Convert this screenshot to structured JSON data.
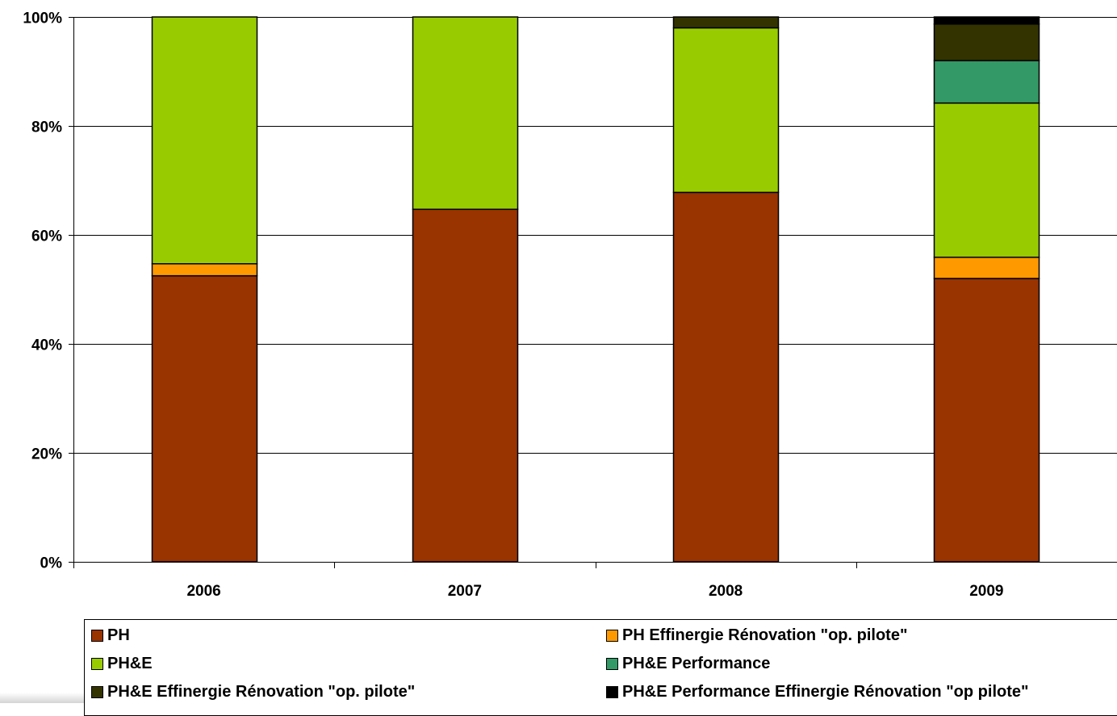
{
  "chart_data": {
    "type": "bar",
    "stacked": true,
    "normalized": true,
    "categories": [
      "2006",
      "2007",
      "2008",
      "2009"
    ],
    "series": [
      {
        "name": "PH",
        "color": "#993300",
        "values": [
          52.5,
          64.7,
          67.8,
          52.0
        ]
      },
      {
        "name": "PH Effinergie Rénovation \"op. pilote\"",
        "color": "#FF9900",
        "values": [
          2.2,
          0,
          0,
          3.9
        ]
      },
      {
        "name": "PH&E",
        "color": "#99CC00",
        "values": [
          45.3,
          35.3,
          30.2,
          28.3
        ]
      },
      {
        "name": "PH&E Performance",
        "color": "#339966",
        "values": [
          0,
          0,
          0,
          7.8
        ]
      },
      {
        "name": "PH&E Effinergie Rénovation \"op. pilote\"",
        "color": "#333300",
        "values": [
          0,
          0,
          2.0,
          6.7
        ]
      },
      {
        "name": "PH&E Performance Effinergie Rénovation \"op pilote\"",
        "color": "#000000",
        "values": [
          0,
          0,
          0,
          1.3
        ]
      }
    ],
    "y_ticks": [
      "0%",
      "20%",
      "40%",
      "60%",
      "80%",
      "100%"
    ],
    "ylim": [
      0,
      100
    ],
    "grid": true,
    "legend_position": "bottom",
    "title": "",
    "xlabel": "",
    "ylabel": ""
  }
}
